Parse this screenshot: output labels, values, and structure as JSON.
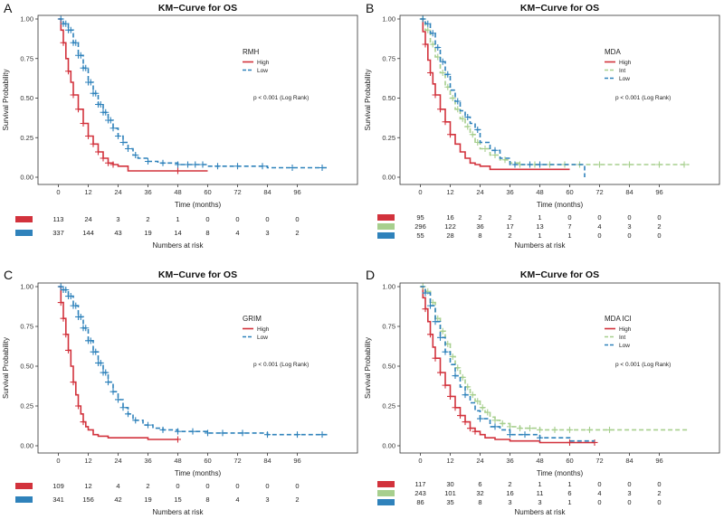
{
  "figure": {
    "panel_letters": [
      "A",
      "B",
      "C",
      "D"
    ]
  },
  "colors": {
    "high": "#d2323c",
    "int": "#a7cf8e",
    "low": "#2f82bb"
  },
  "chart_data": [
    {
      "panel": "A",
      "type": "line",
      "title": "KM−Curve for OS",
      "xlabel": "Time (months)",
      "ylabel": "Survival Probability",
      "xlim": [
        -6,
        118
      ],
      "ylim": [
        0,
        1
      ],
      "xticks": [
        0,
        12,
        24,
        36,
        48,
        60,
        72,
        84,
        96
      ],
      "xtick_labels": [
        "0",
        "12",
        "24",
        "36",
        "48",
        "60",
        "72",
        "84",
        "96"
      ],
      "yticks": [
        0,
        0.25,
        0.5,
        0.75,
        1
      ],
      "ytick_labels": [
        "0.00",
        "0.25",
        "0.50",
        "0.75",
        "1.00"
      ],
      "legend_title": "RMH",
      "pvalue": "p < 0.001 (Log Rank)",
      "risk_title": "Numbers at risk",
      "series": [
        {
          "name": "High",
          "color_key": "high",
          "dash": false,
          "x": [
            0,
            1,
            2,
            3,
            4,
            5,
            6,
            8,
            10,
            12,
            14,
            16,
            18,
            20,
            22,
            24,
            28,
            48,
            60
          ],
          "y": [
            1.0,
            0.93,
            0.85,
            0.75,
            0.67,
            0.6,
            0.52,
            0.43,
            0.34,
            0.26,
            0.21,
            0.16,
            0.12,
            0.09,
            0.08,
            0.07,
            0.04,
            0.04,
            0.04
          ],
          "censor_x": [
            2,
            4,
            6,
            8,
            10,
            12,
            14,
            16,
            18,
            20,
            22,
            48
          ]
        },
        {
          "name": "Low",
          "color_key": "low",
          "dash": true,
          "x": [
            0,
            2,
            4,
            6,
            8,
            10,
            12,
            14,
            16,
            18,
            20,
            22,
            24,
            26,
            28,
            30,
            32,
            36,
            40,
            48,
            60,
            72,
            84,
            96,
            108
          ],
          "y": [
            1.0,
            0.97,
            0.93,
            0.85,
            0.77,
            0.69,
            0.6,
            0.53,
            0.46,
            0.41,
            0.36,
            0.31,
            0.26,
            0.22,
            0.18,
            0.14,
            0.12,
            0.1,
            0.09,
            0.08,
            0.07,
            0.07,
            0.06,
            0.06,
            0.06
          ],
          "censor_x": [
            1,
            2,
            3,
            4,
            5,
            6,
            7,
            8,
            9,
            10,
            11,
            12,
            13,
            14,
            15,
            16,
            17,
            18,
            19,
            20,
            21,
            22,
            24,
            26,
            28,
            31,
            36,
            42,
            48,
            52,
            55,
            58,
            64,
            72,
            82,
            94,
            106
          ]
        }
      ],
      "risk_table": {
        "times": [
          0,
          12,
          24,
          36,
          48,
          60,
          72,
          84,
          96
        ],
        "rows": [
          {
            "color_key": "high",
            "counts": [
              "113",
              "24",
              "3",
              "2",
              "1",
              "0",
              "0",
              "0",
              "0"
            ]
          },
          {
            "color_key": "low",
            "counts": [
              "337",
              "144",
              "43",
              "19",
              "14",
              "8",
              "4",
              "3",
              "2"
            ]
          }
        ]
      }
    },
    {
      "panel": "B",
      "type": "line",
      "title": "KM−Curve for OS",
      "xlabel": "Time (months)",
      "ylabel": "Survival Probability",
      "xlim": [
        -6,
        118
      ],
      "ylim": [
        0,
        1
      ],
      "xticks": [
        0,
        12,
        24,
        36,
        48,
        60,
        72,
        84,
        96
      ],
      "xtick_labels": [
        "0",
        "12",
        "24",
        "36",
        "48",
        "60",
        "72",
        "84",
        "96"
      ],
      "yticks": [
        0,
        0.25,
        0.5,
        0.75,
        1
      ],
      "ytick_labels": [
        "0.00",
        "0.25",
        "0.50",
        "0.75",
        "1.00"
      ],
      "legend_title": "MDA",
      "pvalue": "p < 0.001 (Log Rank)",
      "risk_title": "Numbers at risk",
      "series": [
        {
          "name": "High",
          "color_key": "high",
          "dash": false,
          "x": [
            0,
            1,
            2,
            3,
            4,
            5,
            6,
            8,
            10,
            12,
            14,
            16,
            18,
            20,
            22,
            24,
            28,
            36,
            48,
            60
          ],
          "y": [
            1.0,
            0.92,
            0.84,
            0.74,
            0.66,
            0.59,
            0.52,
            0.43,
            0.35,
            0.27,
            0.21,
            0.16,
            0.12,
            0.09,
            0.08,
            0.07,
            0.05,
            0.05,
            0.05,
            0.05
          ],
          "censor_x": [
            2,
            4,
            6,
            8,
            10,
            12
          ]
        },
        {
          "name": "Int",
          "color_key": "int",
          "dash": true,
          "x": [
            0,
            2,
            4,
            6,
            8,
            10,
            12,
            14,
            16,
            18,
            20,
            22,
            24,
            28,
            32,
            36,
            40,
            48,
            60,
            72,
            84,
            96,
            108
          ],
          "y": [
            1.0,
            0.93,
            0.84,
            0.76,
            0.66,
            0.57,
            0.5,
            0.43,
            0.37,
            0.32,
            0.27,
            0.22,
            0.18,
            0.14,
            0.11,
            0.09,
            0.08,
            0.08,
            0.08,
            0.08,
            0.08,
            0.08,
            0.08
          ],
          "censor_x": [
            1,
            3,
            5,
            7,
            9,
            11,
            13,
            15,
            17,
            19,
            21,
            23,
            26,
            30,
            34,
            40,
            46,
            52,
            58,
            64,
            72,
            84,
            96,
            106
          ]
        },
        {
          "name": "Low",
          "color_key": "low",
          "dash": true,
          "x": [
            0,
            2,
            4,
            6,
            8,
            10,
            12,
            14,
            16,
            18,
            20,
            22,
            24,
            28,
            32,
            36,
            48,
            60,
            66
          ],
          "y": [
            1.0,
            0.97,
            0.91,
            0.82,
            0.73,
            0.65,
            0.55,
            0.48,
            0.42,
            0.38,
            0.34,
            0.3,
            0.22,
            0.17,
            0.12,
            0.08,
            0.08,
            0.08,
            0.0
          ],
          "censor_x": [
            1,
            3,
            5,
            7,
            9,
            11,
            15,
            19,
            23,
            30,
            38,
            44,
            48
          ]
        }
      ],
      "risk_table": {
        "times": [
          0,
          12,
          24,
          36,
          48,
          60,
          72,
          84,
          96
        ],
        "rows": [
          {
            "color_key": "high",
            "counts": [
              "95",
              "16",
              "2",
              "2",
              "1",
              "0",
              "0",
              "0",
              "0"
            ]
          },
          {
            "color_key": "int",
            "counts": [
              "296",
              "122",
              "36",
              "17",
              "13",
              "7",
              "4",
              "3",
              "2"
            ]
          },
          {
            "color_key": "low",
            "counts": [
              "55",
              "28",
              "8",
              "2",
              "1",
              "1",
              "0",
              "0",
              "0"
            ]
          }
        ]
      }
    },
    {
      "panel": "C",
      "type": "line",
      "title": "KM−Curve for OS",
      "xlabel": "Time (months)",
      "ylabel": "Survival Probability",
      "xlim": [
        -6,
        118
      ],
      "ylim": [
        0,
        1
      ],
      "xticks": [
        0,
        12,
        24,
        36,
        48,
        60,
        72,
        84,
        96
      ],
      "xtick_labels": [
        "0",
        "12",
        "24",
        "36",
        "48",
        "60",
        "72",
        "84",
        "96"
      ],
      "yticks": [
        0,
        0.25,
        0.5,
        0.75,
        1
      ],
      "ytick_labels": [
        "0.00",
        "0.25",
        "0.50",
        "0.75",
        "1.00"
      ],
      "legend_title": "GRIM",
      "pvalue": "p < 0.001 (Log Rank)",
      "risk_title": "Numbers at risk",
      "series": [
        {
          "name": "High",
          "color_key": "high",
          "dash": false,
          "x": [
            0,
            1,
            2,
            3,
            4,
            5,
            6,
            7,
            8,
            9,
            10,
            11,
            12,
            14,
            16,
            20,
            24,
            30,
            36,
            48
          ],
          "y": [
            1.0,
            0.9,
            0.8,
            0.7,
            0.6,
            0.5,
            0.4,
            0.32,
            0.25,
            0.2,
            0.15,
            0.12,
            0.1,
            0.07,
            0.06,
            0.05,
            0.05,
            0.05,
            0.04,
            0.04
          ],
          "censor_x": [
            1,
            2,
            3,
            4,
            6,
            8,
            10,
            48
          ]
        },
        {
          "name": "Low",
          "color_key": "low",
          "dash": true,
          "x": [
            0,
            2,
            4,
            6,
            8,
            10,
            12,
            14,
            16,
            18,
            20,
            22,
            24,
            26,
            28,
            30,
            34,
            38,
            42,
            48,
            60,
            72,
            84,
            96,
            108
          ],
          "y": [
            1.0,
            0.98,
            0.94,
            0.88,
            0.81,
            0.74,
            0.66,
            0.59,
            0.52,
            0.46,
            0.4,
            0.34,
            0.29,
            0.24,
            0.2,
            0.16,
            0.13,
            0.11,
            0.1,
            0.09,
            0.08,
            0.08,
            0.07,
            0.07,
            0.07
          ],
          "censor_x": [
            1,
            2,
            3,
            4,
            5,
            6,
            7,
            8,
            9,
            10,
            11,
            12,
            13,
            14,
            15,
            16,
            17,
            18,
            19,
            20,
            22,
            24,
            26,
            28,
            31,
            36,
            42,
            48,
            54,
            60,
            66,
            74,
            84,
            96,
            106
          ]
        }
      ],
      "risk_table": {
        "times": [
          0,
          12,
          24,
          36,
          48,
          60,
          72,
          84,
          96
        ],
        "rows": [
          {
            "color_key": "high",
            "counts": [
              "109",
              "12",
              "4",
              "2",
              "0",
              "0",
              "0",
              "0",
              "0"
            ]
          },
          {
            "color_key": "low",
            "counts": [
              "341",
              "156",
              "42",
              "19",
              "15",
              "8",
              "4",
              "3",
              "2"
            ]
          }
        ]
      }
    },
    {
      "panel": "D",
      "type": "line",
      "title": "KM−Curve for OS",
      "xlabel": "Time (months)",
      "ylabel": "Survival Probability",
      "xlim": [
        -6,
        118
      ],
      "ylim": [
        0,
        1
      ],
      "xticks": [
        0,
        12,
        24,
        36,
        48,
        60,
        72,
        84,
        96
      ],
      "xtick_labels": [
        "0",
        "12",
        "24",
        "36",
        "48",
        "60",
        "72",
        "84",
        "96"
      ],
      "yticks": [
        0,
        0.25,
        0.5,
        0.75,
        1
      ],
      "ytick_labels": [
        "0.00",
        "0.25",
        "0.50",
        "0.75",
        "1.00"
      ],
      "legend_title": "MDA ICI",
      "pvalue": "p < 0.001 (Log Rank)",
      "risk_title": "Numbers at risk",
      "series": [
        {
          "name": "High",
          "color_key": "high",
          "dash": false,
          "x": [
            0,
            1,
            2,
            3,
            4,
            5,
            6,
            8,
            10,
            12,
            14,
            16,
            18,
            20,
            22,
            24,
            26,
            30,
            36,
            48,
            60,
            70
          ],
          "y": [
            1.0,
            0.93,
            0.86,
            0.78,
            0.7,
            0.62,
            0.55,
            0.46,
            0.38,
            0.31,
            0.24,
            0.19,
            0.15,
            0.11,
            0.09,
            0.07,
            0.05,
            0.04,
            0.03,
            0.02,
            0.02,
            0.02
          ],
          "censor_x": [
            2,
            4,
            6,
            8,
            10,
            12,
            14,
            16,
            18,
            20,
            22,
            60,
            70
          ]
        },
        {
          "name": "Int",
          "color_key": "int",
          "dash": true,
          "x": [
            0,
            2,
            4,
            6,
            8,
            10,
            12,
            14,
            16,
            18,
            20,
            22,
            24,
            26,
            28,
            30,
            32,
            36,
            40,
            48,
            60,
            72,
            84,
            96,
            108
          ],
          "y": [
            1.0,
            0.97,
            0.9,
            0.8,
            0.72,
            0.64,
            0.56,
            0.49,
            0.43,
            0.37,
            0.32,
            0.28,
            0.24,
            0.21,
            0.18,
            0.16,
            0.14,
            0.12,
            0.11,
            0.1,
            0.1,
            0.1,
            0.1,
            0.1,
            0.1
          ],
          "censor_x": [
            1,
            3,
            5,
            7,
            9,
            11,
            13,
            15,
            17,
            19,
            21,
            23,
            25,
            27,
            30,
            33,
            36,
            40,
            44,
            48,
            54,
            60,
            68,
            76
          ]
        },
        {
          "name": "Low",
          "color_key": "low",
          "dash": true,
          "x": [
            0,
            2,
            4,
            6,
            8,
            10,
            12,
            14,
            16,
            18,
            20,
            22,
            24,
            28,
            32,
            36,
            48,
            60,
            70
          ],
          "y": [
            1.0,
            0.96,
            0.88,
            0.78,
            0.68,
            0.59,
            0.51,
            0.44,
            0.37,
            0.32,
            0.27,
            0.22,
            0.17,
            0.12,
            0.1,
            0.07,
            0.05,
            0.03,
            0.03
          ],
          "censor_x": [
            2,
            4,
            6,
            8,
            10,
            14,
            18,
            24,
            30,
            36,
            42,
            48
          ]
        }
      ],
      "risk_table": {
        "times": [
          0,
          12,
          24,
          36,
          48,
          60,
          72,
          84,
          96
        ],
        "rows": [
          {
            "color_key": "high",
            "counts": [
              "117",
              "30",
              "6",
              "2",
              "1",
              "1",
              "0",
              "0",
              "0"
            ]
          },
          {
            "color_key": "int",
            "counts": [
              "243",
              "101",
              "32",
              "16",
              "11",
              "6",
              "4",
              "3",
              "2"
            ]
          },
          {
            "color_key": "low",
            "counts": [
              "86",
              "35",
              "8",
              "3",
              "3",
              "1",
              "0",
              "0",
              "0"
            ]
          }
        ]
      }
    }
  ]
}
